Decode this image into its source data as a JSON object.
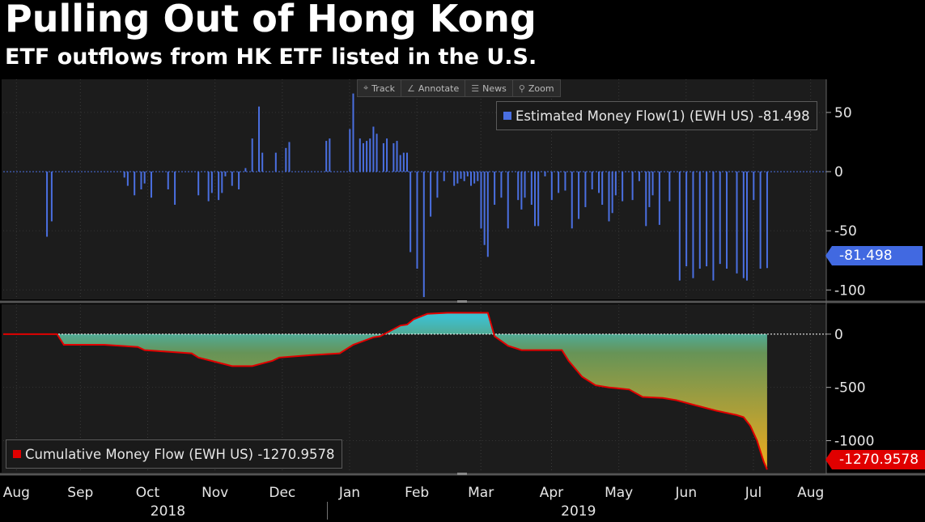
{
  "title": "Pulling Out of Hong Kong",
  "subtitle": "ETF outflows from HK ETF listed in the U.S.",
  "toolbar": {
    "track": "Track",
    "annotate": "Annotate",
    "news": "News",
    "zoom": "Zoom"
  },
  "colors": {
    "background": "#000000",
    "panel": "#1c1c1c",
    "bars": "#4a6fe0",
    "cumulative_line": "#e00000",
    "fill_top": "#3ec8d8",
    "fill_mid": "#6a9a5a",
    "fill_bottom": "#f0b020"
  },
  "chart_data": [
    {
      "type": "bar",
      "legend": "Estimated Money Flow(1) (EWH US) -81.498",
      "last_value_label": "-81.498",
      "ylim": [
        -108,
        78
      ],
      "yticks": [
        "50",
        "0",
        "-50",
        "-100"
      ],
      "ytick_values": [
        50,
        0,
        -50,
        -100
      ],
      "x_range": [
        0,
        12
      ],
      "x": [
        0.65,
        0.72,
        1.8,
        1.85,
        1.95,
        2.05,
        2.1,
        2.2,
        2.45,
        2.55,
        2.9,
        3.05,
        3.1,
        3.2,
        3.25,
        3.3,
        3.4,
        3.5,
        3.6,
        3.7,
        3.8,
        3.85,
        4.05,
        4.2,
        4.25,
        4.8,
        4.85,
        5.15,
        5.2,
        5.3,
        5.35,
        5.4,
        5.45,
        5.5,
        5.55,
        5.65,
        5.7,
        5.8,
        5.85,
        5.9,
        5.95,
        6.0,
        6.05,
        6.15,
        6.25,
        6.35,
        6.45,
        6.55,
        6.7,
        6.75,
        6.8,
        6.85,
        6.9,
        6.95,
        7.0,
        7.05,
        7.1,
        7.15,
        7.2,
        7.3,
        7.4,
        7.5,
        7.65,
        7.7,
        7.75,
        7.85,
        7.9,
        7.95,
        8.05,
        8.15,
        8.25,
        8.35,
        8.45,
        8.55,
        8.65,
        8.75,
        8.85,
        8.9,
        9.0,
        9.05,
        9.1,
        9.2,
        9.35,
        9.45,
        9.55,
        9.6,
        9.65,
        9.75,
        9.9,
        10.05,
        10.15,
        10.25,
        10.35,
        10.45,
        10.55,
        10.65,
        10.75,
        10.9,
        11.0,
        11.05,
        11.15,
        11.25,
        11.35
      ],
      "values": [
        -55,
        -42,
        -5,
        -12,
        -20,
        -15,
        -10,
        -22,
        -15,
        -28,
        -20,
        -25,
        -18,
        -24,
        -18,
        -4,
        -12,
        -15,
        3,
        28,
        55,
        16,
        16,
        20,
        25,
        26,
        28,
        36,
        66,
        28,
        24,
        26,
        28,
        38,
        32,
        24,
        28,
        24,
        26,
        14,
        16,
        16,
        -68,
        -82,
        -106,
        -38,
        -22,
        -8,
        -12,
        -10,
        -6,
        -8,
        -4,
        -12,
        -10,
        -8,
        -48,
        -62,
        -72,
        -28,
        -22,
        -48,
        -24,
        -32,
        -22,
        -28,
        -46,
        -46,
        -4,
        -24,
        -18,
        -16,
        -48,
        -40,
        -30,
        -15,
        -18,
        -28,
        -42,
        -35,
        -20,
        -25,
        -24,
        -8,
        -46,
        -30,
        -20,
        -45,
        -25,
        -92,
        -80,
        -90,
        -82,
        -80,
        -92,
        -78,
        -82,
        -86,
        -90,
        -92,
        -24,
        -82,
        -81.498
      ]
    },
    {
      "type": "area",
      "legend": "Cumulative Money Flow (EWH US) -1270.9578",
      "last_value_label": "-1270.9578",
      "ylim": [
        -1300,
        280
      ],
      "yticks": [
        "0",
        "-500",
        "-1000"
      ],
      "ytick_values": [
        0,
        -500,
        -1000
      ],
      "x_range": [
        0,
        12
      ],
      "x": [
        0,
        0.8,
        0.9,
        1.5,
        2.0,
        2.1,
        2.8,
        2.9,
        3.4,
        3.7,
        4.0,
        4.1,
        4.5,
        5.0,
        5.2,
        5.5,
        5.6,
        5.9,
        6.0,
        6.1,
        6.3,
        6.6,
        6.9,
        7.2,
        7.3,
        7.5,
        7.7,
        8.0,
        8.3,
        8.4,
        8.6,
        8.8,
        9.0,
        9.3,
        9.5,
        9.8,
        10.0,
        10.3,
        10.6,
        10.9,
        11.0,
        11.1,
        11.2,
        11.25,
        11.3,
        11.35
      ],
      "values": [
        0,
        0,
        -100,
        -100,
        -120,
        -150,
        -180,
        -220,
        -300,
        -300,
        -250,
        -220,
        -200,
        -180,
        -100,
        -30,
        -20,
        80,
        90,
        140,
        190,
        200,
        200,
        200,
        -20,
        -110,
        -150,
        -150,
        -150,
        -250,
        -400,
        -480,
        -500,
        -520,
        -590,
        -600,
        -620,
        -670,
        -720,
        -760,
        -780,
        -860,
        -1000,
        -1100,
        -1200,
        -1270.9578
      ]
    }
  ],
  "x_axis": {
    "months": [
      "Aug",
      "Sep",
      "Oct",
      "Nov",
      "Dec",
      "Jan",
      "Feb",
      "Mar",
      "Apr",
      "May",
      "Jun",
      "Jul",
      "Aug"
    ],
    "month_positions": [
      0.1,
      1.05,
      2.05,
      3.05,
      4.05,
      5.05,
      6.05,
      7.0,
      8.05,
      9.05,
      10.05,
      11.05,
      11.9
    ],
    "years": [
      "2018",
      "2019"
    ],
    "year_positions": [
      2.35,
      8.45
    ],
    "year_divider": 4.72
  }
}
